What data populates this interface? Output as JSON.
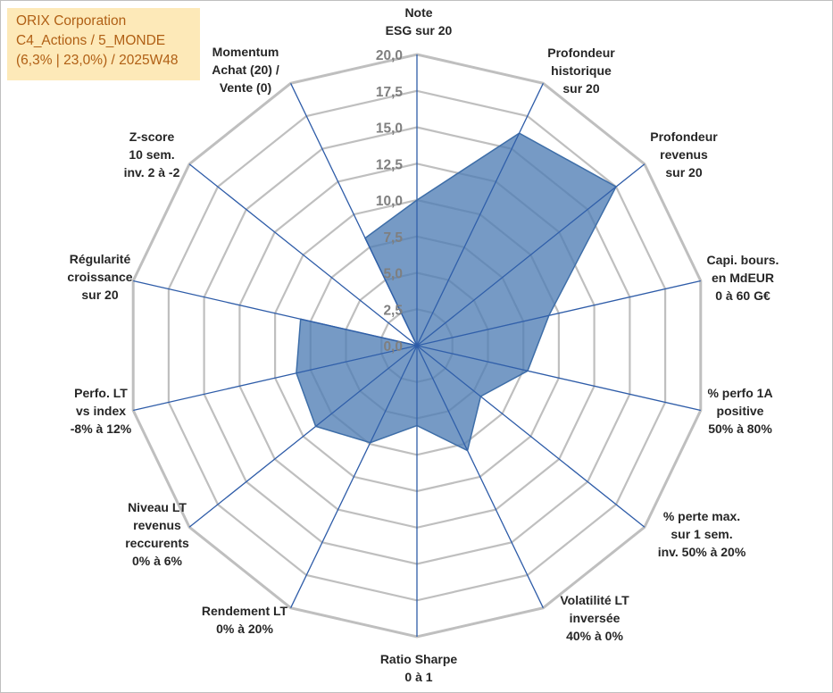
{
  "info": {
    "line1": "ORIX Corporation",
    "line2": "C4_Actions / 5_MONDE",
    "line3": "(6,3% | 23,0%) / 2025W48"
  },
  "colors": {
    "grid": "#bfbfbf",
    "spoke": "#2e5ca8",
    "fill": "#4f7db5",
    "fill_stroke": "#3e6ea8",
    "label": "#262626",
    "tick": "#7f7f7f",
    "info_bg": "#fde9b8",
    "info_text": "#b05f14"
  },
  "chart_data": {
    "type": "radar",
    "title": "",
    "rmin": 0,
    "rmax": 20,
    "ticks": [
      "0,0",
      "2,5",
      "5,0",
      "7,5",
      "10,0",
      "12,5",
      "15,0",
      "17,5",
      "20,0"
    ],
    "tick_values": [
      0,
      2.5,
      5,
      7.5,
      10,
      12.5,
      15,
      17.5,
      20
    ],
    "axes": [
      {
        "label": [
          "Note",
          "ESG sur 20"
        ],
        "value": 10
      },
      {
        "label": [
          "Profondeur",
          "historique",
          "sur 20"
        ],
        "value": 16.2
      },
      {
        "label": [
          "Profondeur",
          "revenus",
          "sur 20"
        ],
        "value": 17.5
      },
      {
        "label": [
          "Capi. bours.",
          "en MdEUR",
          "0 à 60 G€"
        ],
        "value": 9.3
      },
      {
        "label": [
          "% perfo 1A",
          "positive",
          "50% à 80%"
        ],
        "value": 7.8
      },
      {
        "label": [
          "% perte max.",
          "sur 1 sem.",
          "inv. 50% à 20%"
        ],
        "value": 5.6
      },
      {
        "label": [
          "Volatilité LT",
          "inversée",
          "40% à 0%"
        ],
        "value": 8.0
      },
      {
        "label": [
          "Ratio Sharpe",
          "0 à 1"
        ],
        "value": 5.5
      },
      {
        "label": [
          "Rendement LT",
          "0% à 20%"
        ],
        "value": 7.4
      },
      {
        "label": [
          "Niveau LT",
          "revenus",
          "reccurents",
          "0% à 6%"
        ],
        "value": 8.9
      },
      {
        "label": [
          "Perfo. LT",
          "vs index",
          "-8% à 12%"
        ],
        "value": 8.5
      },
      {
        "label": [
          "Régularité",
          "croissance",
          "sur 20"
        ],
        "value": 8.2
      },
      {
        "label": [
          "Z-score",
          "10 sem.",
          "inv. 2 à -2"
        ],
        "value": 0
      },
      {
        "label": [
          "Momentum",
          "Achat (20) /",
          "Vente (0)"
        ],
        "value": 8.2
      }
    ]
  }
}
